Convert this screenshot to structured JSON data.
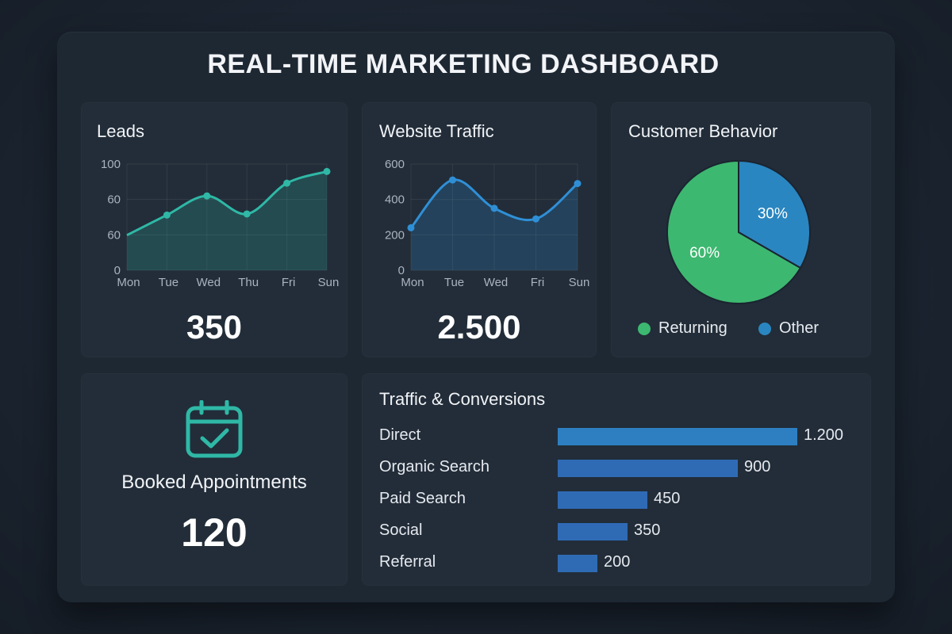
{
  "dashboard": {
    "title": "REAL-TIME MARKETING DASHBOARD"
  },
  "leads": {
    "title": "Leads",
    "value": "350",
    "y_ticks": [
      "100",
      "60",
      "60",
      "0"
    ],
    "x_ticks": [
      "Mon",
      "Tue",
      "Wed",
      "Thu",
      "Fri",
      "Sun"
    ],
    "color": "#2fb8a6"
  },
  "traffic": {
    "title": "Website Traffic",
    "value": "2.500",
    "y_ticks": [
      "600",
      "400",
      "200",
      "0"
    ],
    "x_ticks": [
      "Mon",
      "Tue",
      "Wed",
      "Fri",
      "Sun"
    ],
    "color": "#2f8fd6"
  },
  "behavior": {
    "title": "Customer Behavior",
    "slices": [
      {
        "label": "60%",
        "value": 60,
        "color": "#3db870"
      },
      {
        "label": "30%",
        "value": 30,
        "color": "#2a86c0"
      }
    ],
    "legend": [
      {
        "label": "Returning",
        "color": "#3db870"
      },
      {
        "label": "Other",
        "color": "#2a86c0"
      }
    ]
  },
  "appointments": {
    "icon": "calendar-check-icon",
    "title": "Booked Appointments",
    "value": "120",
    "color": "#2fb8a6"
  },
  "conversions": {
    "title": "Traffic & Conversions",
    "bar_color": "#2f6bb5",
    "top_bar_color": "#2d7fc2"
  },
  "chart_data": [
    {
      "type": "line",
      "title": "Leads",
      "x": [
        "Mon",
        "Tue",
        "Wed",
        "Thu",
        "Fri",
        "Sun"
      ],
      "values": [
        33,
        52,
        70,
        53,
        82,
        93
      ],
      "y_tick_labels": [
        "100",
        "60",
        "60",
        "0"
      ],
      "ylim": [
        0,
        100
      ]
    },
    {
      "type": "line",
      "title": "Website Traffic",
      "x": [
        "Mon",
        "Tue",
        "Wed",
        "Fri",
        "Sun"
      ],
      "values": [
        240,
        510,
        350,
        290,
        490
      ],
      "y_tick_labels": [
        "600",
        "400",
        "200",
        "0"
      ],
      "ylim": [
        0,
        600
      ]
    },
    {
      "type": "pie",
      "title": "Customer Behavior",
      "categories": [
        "Returning",
        "Other"
      ],
      "values": [
        60,
        30
      ]
    },
    {
      "type": "bar",
      "title": "Traffic & Conversions",
      "categories": [
        "Direct",
        "Organic Search",
        "Paid Search",
        "Social",
        "Referral"
      ],
      "values": [
        1200,
        900,
        450,
        350,
        200
      ],
      "labels": [
        "1.200",
        "900",
        "450",
        "350",
        "200"
      ]
    }
  ]
}
